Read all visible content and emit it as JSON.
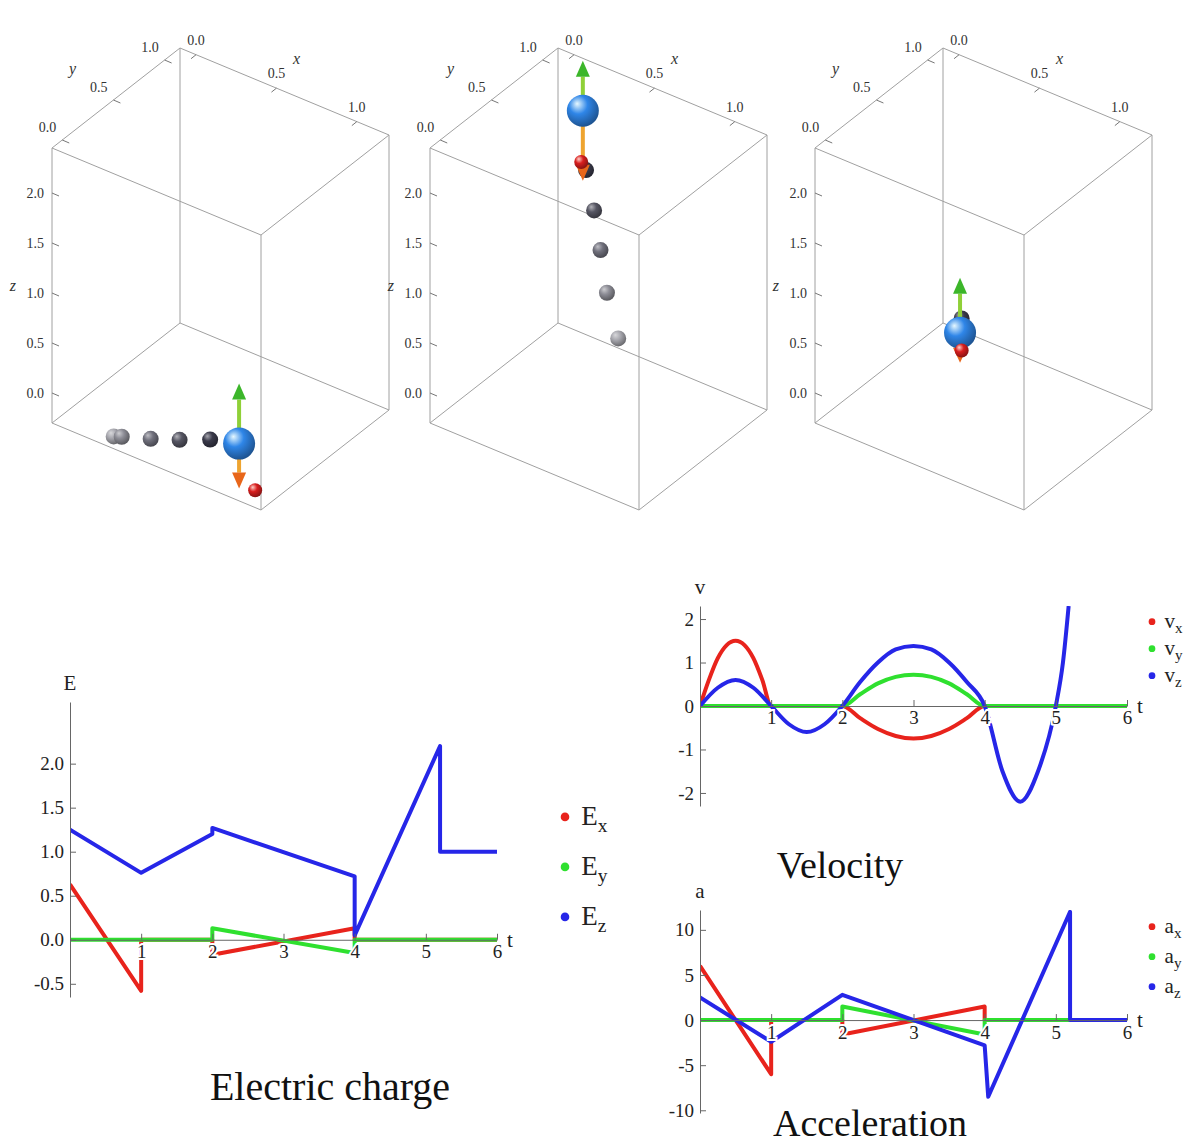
{
  "chart_data": [
    {
      "type": "scatter3d",
      "x_label": "x",
      "y_label": "y",
      "z_label": "z",
      "xlim": [
        -0.1,
        1.2
      ],
      "ylim": [
        -0.1,
        1.15
      ],
      "zlim": [
        -0.3,
        2.45
      ],
      "xticks": [
        {
          "value": 0,
          "label": "0.0"
        },
        0.5,
        {
          "value": 1,
          "label": "1.0"
        }
      ],
      "yticks": [
        {
          "value": 0,
          "label": "0.0"
        },
        0.5,
        {
          "value": 1,
          "label": "1.0"
        }
      ],
      "zticks": [
        {
          "value": 0,
          "label": "0.0"
        },
        0.5,
        {
          "value": 1,
          "label": "1.0"
        },
        1.5,
        {
          "value": 2,
          "label": "2.0"
        }
      ],
      "trail": {
        "color": "#3a3a4a",
        "x": [
          0.22,
          0.27,
          0.45,
          0.63,
          0.82
        ],
        "y": [
          0,
          0,
          0,
          0,
          0
        ],
        "z": [
          -0.3,
          -0.27,
          -0.17,
          -0.06,
          0.07
        ]
      },
      "sphere": {
        "color": "#2f86e8",
        "x": 1.0,
        "y": 0,
        "z": 0.15
      },
      "charge": {
        "color": "#d81e1e",
        "x": 1.1,
        "y": 0,
        "z": -0.25
      },
      "arrows": [
        {
          "color": "#3cb62a",
          "dz": 0.6
        },
        {
          "color": "#e8661a",
          "dz": -0.45
        }
      ]
    },
    {
      "type": "scatter3d",
      "x_label": "x",
      "y_label": "y",
      "z_label": "z",
      "xlim": [
        -0.1,
        1.2
      ],
      "ylim": [
        -0.1,
        1.15
      ],
      "zlim": [
        -0.3,
        2.45
      ],
      "xticks": [
        {
          "value": 0,
          "label": "0.0"
        },
        0.5,
        {
          "value": 1,
          "label": "1.0"
        }
      ],
      "yticks": [
        {
          "value": 0,
          "label": "0.0"
        },
        0.5,
        {
          "value": 1,
          "label": "1.0"
        }
      ],
      "zticks": [
        {
          "value": 0,
          "label": "0.0"
        },
        0.5,
        {
          "value": 1,
          "label": "1.0"
        },
        1.5,
        {
          "value": 2,
          "label": "2.0"
        }
      ],
      "trail": {
        "color": "#3a3a4a",
        "x": [
          0.37,
          0.3,
          0.26,
          0.22,
          0.17
        ],
        "y": [
          1,
          1,
          1,
          1,
          1
        ],
        "z": [
          -0.02,
          0.39,
          0.79,
          1.16,
          1.53
        ]
      },
      "sphere": {
        "color": "#2f86e8",
        "x": 0.15,
        "y": 1,
        "z": 2.11
      },
      "charge": {
        "color": "#d81e1e",
        "x": 0.14,
        "y": 1,
        "z": 1.59
      },
      "arrows": [
        {
          "color": "#3cb62a",
          "dz": 0.5
        },
        {
          "color": "#e8661a",
          "dz": -0.7
        }
      ]
    },
    {
      "type": "scatter3d",
      "x_label": "x",
      "y_label": "y",
      "z_label": "z",
      "xlim": [
        -0.1,
        1.2
      ],
      "ylim": [
        -0.1,
        1.15
      ],
      "zlim": [
        -0.3,
        2.45
      ],
      "xticks": [
        {
          "value": 0,
          "label": "0.0"
        },
        0.5,
        {
          "value": 1,
          "label": "1.0"
        }
      ],
      "yticks": [
        {
          "value": 0,
          "label": "0.0"
        },
        0.5,
        {
          "value": 1,
          "label": "1.0"
        }
      ],
      "zticks": [
        {
          "value": 0,
          "label": "0.0"
        },
        0.5,
        {
          "value": 1,
          "label": "1.0"
        },
        1.5,
        {
          "value": 2,
          "label": "2.0"
        }
      ],
      "trail": {
        "color": "#3a3a4a",
        "x": [
          0.43
        ],
        "y": [
          0.5
        ],
        "z": [
          0.62
        ]
      },
      "sphere": {
        "color": "#2f86e8",
        "x": 0.42,
        "y": 0.5,
        "z": 0.47
      },
      "charge": {
        "color": "#d81e1e",
        "x": 0.43,
        "y": 0.5,
        "z": 0.3
      },
      "arrows": [
        {
          "color": "#3cb62a",
          "dz": 0.55
        },
        {
          "color": "#e8661a",
          "dz": -0.3
        }
      ]
    },
    {
      "type": "line",
      "title": "Electric charge",
      "x_label": "t",
      "y_label": "E",
      "xlim": [
        0,
        6
      ],
      "ylim": [
        -0.65,
        2.7
      ],
      "xticks": [
        1,
        2,
        3,
        4,
        5,
        6
      ],
      "yticks": [
        -0.5,
        {
          "value": 0,
          "label": "0.0"
        },
        0.5,
        {
          "value": 1,
          "label": "1.0"
        },
        1.5,
        {
          "value": 2,
          "label": "2.0"
        }
      ],
      "legend": "right",
      "line_style": "solid",
      "series": [
        {
          "name": "Ex",
          "color": "#e8231c",
          "x": [
            0,
            1,
            1,
            2,
            2,
            4,
            4,
            6
          ],
          "values": [
            0.63,
            -0.58,
            0,
            0,
            -0.17,
            0.13,
            0,
            0
          ]
        },
        {
          "name": "Ey",
          "color": "#2fe02f",
          "x": [
            0,
            2,
            2,
            4,
            4,
            6
          ],
          "values": [
            0,
            0,
            0.13,
            -0.15,
            0,
            0
          ]
        },
        {
          "name": "Ez",
          "color": "#2626e8",
          "x": [
            0,
            1,
            2,
            2,
            4,
            4,
            5.2,
            5.2,
            6
          ],
          "values": [
            1.25,
            0.76,
            1.2,
            1.27,
            0.72,
            0.05,
            2.2,
            1.0,
            1.0
          ]
        }
      ]
    },
    {
      "type": "line",
      "title": "Velocity",
      "x_label": "t",
      "y_label": "v",
      "xlim": [
        0,
        6
      ],
      "ylim": [
        -2.3,
        2.3
      ],
      "xticks": [
        1,
        2,
        3,
        4,
        5,
        6
      ],
      "yticks": [
        -2,
        -1,
        0,
        1,
        2
      ],
      "legend": "right",
      "line_style": "smooth",
      "series": [
        {
          "name": "vx",
          "color": "#e8231c",
          "x": [
            0,
            0.125,
            0.25,
            0.375,
            0.5,
            0.625,
            0.75,
            0.875,
            1,
            2,
            2.25,
            2.5,
            2.75,
            3,
            3.25,
            3.5,
            3.75,
            4,
            6
          ],
          "values": [
            0,
            0.6,
            1.1,
            1.4,
            1.5,
            1.4,
            1.1,
            0.6,
            0,
            0,
            -0.28,
            -0.53,
            -0.69,
            -0.75,
            -0.69,
            -0.53,
            -0.28,
            0,
            0
          ]
        },
        {
          "name": "vy",
          "color": "#2fe02f",
          "x": [
            0,
            2,
            2.25,
            2.5,
            2.75,
            3,
            3.25,
            3.5,
            3.75,
            4,
            6
          ],
          "values": [
            0,
            0,
            0.27,
            0.52,
            0.67,
            0.72,
            0.67,
            0.52,
            0.27,
            0,
            0
          ]
        },
        {
          "name": "vz",
          "color": "#2626e8",
          "x": [
            0,
            0.25,
            0.5,
            0.75,
            1,
            1.25,
            1.5,
            1.75,
            2,
            2.25,
            2.5,
            2.75,
            3,
            3.25,
            3.5,
            3.75,
            4,
            4.25,
            4.5,
            4.75,
            5,
            5.1,
            5.18
          ],
          "values": [
            0,
            0.42,
            0.6,
            0.42,
            0,
            -0.42,
            -0.6,
            -0.42,
            0,
            0.55,
            1.0,
            1.3,
            1.38,
            1.3,
            1.0,
            0.55,
            0,
            -1.5,
            -2.2,
            -1.5,
            0,
            1.0,
            2.3
          ]
        }
      ]
    },
    {
      "type": "line",
      "title": "Acceleration",
      "x_label": "t",
      "y_label": "a",
      "xlim": [
        0,
        6
      ],
      "ylim": [
        -10.3,
        12.2
      ],
      "xticks": [
        1,
        2,
        3,
        4,
        5,
        6
      ],
      "yticks": [
        -10,
        -5,
        0,
        5,
        10
      ],
      "legend": "right",
      "line_style": "solid",
      "series": [
        {
          "name": "ax",
          "color": "#e8231c",
          "x": [
            0,
            1,
            1,
            2,
            2,
            4,
            4,
            6
          ],
          "values": [
            6,
            -6,
            0,
            0,
            -1.6,
            1.5,
            0,
            0
          ]
        },
        {
          "name": "ay",
          "color": "#2fe02f",
          "x": [
            0,
            2,
            2,
            4,
            4,
            6
          ],
          "values": [
            0,
            0,
            1.5,
            -1.6,
            0,
            0
          ]
        },
        {
          "name": "az",
          "color": "#2626e8",
          "x": [
            0,
            1,
            2,
            4,
            4.05,
            5.2,
            5.2,
            6
          ],
          "values": [
            2.5,
            -2.4,
            2.8,
            -2.8,
            -8.5,
            12,
            0,
            0
          ]
        }
      ]
    }
  ]
}
